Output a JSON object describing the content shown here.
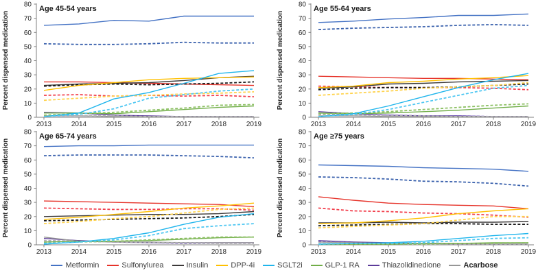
{
  "figure": {
    "ylabel": "Percent dispensed medication",
    "years": [
      2013,
      2014,
      2015,
      2016,
      2017,
      2018,
      2019
    ],
    "ylim": [
      0,
      80
    ],
    "yticks": [
      0,
      10,
      20,
      30,
      40,
      50,
      60,
      70,
      80
    ]
  },
  "legend": [
    {
      "label": "Metformin",
      "color": "#4472C4"
    },
    {
      "label": "Sulfonylurea",
      "color": "#E6332A"
    },
    {
      "label": "Insulin",
      "color": "#3B3838"
    },
    {
      "label": "DPP-4i",
      "color": "#FFC000"
    },
    {
      "label": "SGLT2i",
      "color": "#1FB5EC"
    },
    {
      "label": "GLP-1 RA",
      "color": "#70AD47"
    },
    {
      "label": "Thiazolidinedione",
      "color": "#5C3B99"
    },
    {
      "label": "Acarbose",
      "color": "#969696"
    }
  ],
  "chart_data": [
    {
      "type": "line",
      "title": "Age 45-54 years",
      "x": [
        2013,
        2014,
        2015,
        2016,
        2017,
        2018,
        2019
      ],
      "ylim": [
        0,
        80
      ],
      "series": [
        {
          "name": "Metformin",
          "style": "solid",
          "color": "#4472C4",
          "values": [
            65,
            66,
            68.5,
            68,
            71.5,
            71.5,
            71.5
          ]
        },
        {
          "name": "Metformin",
          "style": "dashed",
          "color": "#3B62AD",
          "values": [
            52,
            51.5,
            51.5,
            52,
            53,
            52.5,
            52.5
          ]
        },
        {
          "name": "Sulfonylurea",
          "style": "solid",
          "color": "#E6332A",
          "values": [
            25,
            25,
            24.5,
            24,
            23.5,
            23,
            22.5
          ]
        },
        {
          "name": "Sulfonylurea",
          "style": "dashed",
          "color": "#F2414E",
          "values": [
            15.5,
            16,
            15,
            15.5,
            15,
            15.5,
            14.5
          ]
        },
        {
          "name": "Insulin",
          "style": "solid",
          "color": "#3B3838",
          "values": [
            22.5,
            23.5,
            24,
            24.5,
            26,
            28,
            29
          ]
        },
        {
          "name": "Insulin",
          "style": "dashed",
          "color": "#181818",
          "values": [
            22,
            23,
            23.5,
            23,
            23.5,
            24,
            25
          ]
        },
        {
          "name": "DPP-4i",
          "style": "solid",
          "color": "#FFC000",
          "values": [
            19,
            22.5,
            24.5,
            26.5,
            27.5,
            28,
            28.5
          ]
        },
        {
          "name": "DPP-4i",
          "style": "dashed",
          "color": "#FFD34D",
          "values": [
            12,
            13.5,
            15,
            15.5,
            16.5,
            17,
            18
          ]
        },
        {
          "name": "Thiazolidinedione",
          "style": "solid",
          "color": "#5C3B99",
          "values": [
            3.5,
            3,
            1.5,
            1,
            0.5,
            0.5,
            0.5
          ]
        },
        {
          "name": "Thiazolidinedione",
          "style": "dashed",
          "color": "#7A5FC0",
          "values": [
            1,
            1,
            1,
            0.5,
            0.5,
            0.5,
            0.5
          ]
        },
        {
          "name": "Acarbose",
          "style": "solid",
          "color": "#969696",
          "values": [
            1,
            1,
            0.5,
            0.5,
            0.5,
            0.5,
            0.5
          ]
        },
        {
          "name": "Acarbose",
          "style": "dashed",
          "color": "#B3B3B3",
          "values": [
            1.5,
            1,
            1,
            0.5,
            0.5,
            0.5,
            0.5
          ]
        },
        {
          "name": "GLP-1 RA",
          "style": "solid",
          "color": "#70AD47",
          "values": [
            3,
            3,
            2.5,
            4,
            5.5,
            7,
            8
          ]
        },
        {
          "name": "GLP-1 RA",
          "style": "dashed",
          "color": "#8CC063",
          "values": [
            1.5,
            2.5,
            3.5,
            5,
            6.5,
            8.5,
            9
          ]
        },
        {
          "name": "SGLT2i",
          "style": "solid",
          "color": "#1FB5EC",
          "values": [
            0.5,
            3,
            13,
            17.5,
            24,
            31,
            33
          ]
        },
        {
          "name": "SGLT2i",
          "style": "dashed",
          "color": "#4FC7F2",
          "values": [
            0.5,
            2,
            6,
            13.5,
            16,
            18.5,
            20
          ]
        }
      ]
    },
    {
      "type": "line",
      "title": "Age 55-64 years",
      "x": [
        2013,
        2014,
        2015,
        2016,
        2017,
        2018,
        2019
      ],
      "ylim": [
        0,
        80
      ],
      "series": [
        {
          "name": "Metformin",
          "style": "solid",
          "color": "#4472C4",
          "values": [
            67,
            68,
            69.5,
            70.5,
            72,
            72,
            73
          ]
        },
        {
          "name": "Metformin",
          "style": "dashed",
          "color": "#3B62AD",
          "values": [
            62,
            63,
            63.5,
            64,
            65,
            65.5,
            65
          ]
        },
        {
          "name": "Sulfonylurea",
          "style": "solid",
          "color": "#E6332A",
          "values": [
            29,
            28.5,
            28,
            27.5,
            27.5,
            27,
            26.5
          ]
        },
        {
          "name": "Sulfonylurea",
          "style": "dashed",
          "color": "#F2414E",
          "values": [
            22,
            21.5,
            21,
            21,
            21,
            20.5,
            19.5
          ]
        },
        {
          "name": "Insulin",
          "style": "solid",
          "color": "#3B3838",
          "values": [
            20.5,
            21.5,
            23.5,
            24,
            25,
            25.5,
            26
          ]
        },
        {
          "name": "Insulin",
          "style": "dashed",
          "color": "#181818",
          "values": [
            19.5,
            20.5,
            21,
            21,
            21.5,
            22.5,
            23.5
          ]
        },
        {
          "name": "DPP-4i",
          "style": "solid",
          "color": "#FFC000",
          "values": [
            21,
            22,
            24.5,
            25.5,
            27,
            28,
            29.5
          ]
        },
        {
          "name": "DPP-4i",
          "style": "dashed",
          "color": "#FFD34D",
          "values": [
            15.5,
            17,
            18.5,
            20.5,
            21.5,
            22.5,
            24.5
          ]
        },
        {
          "name": "Thiazolidinedione",
          "style": "solid",
          "color": "#5C3B99",
          "values": [
            4,
            2.5,
            1.5,
            1,
            1,
            0.5,
            0.5
          ]
        },
        {
          "name": "Thiazolidinedione",
          "style": "dashed",
          "color": "#7A5FC0",
          "values": [
            2.5,
            2,
            1.5,
            1,
            1,
            0.5,
            0.5
          ]
        },
        {
          "name": "Acarbose",
          "style": "solid",
          "color": "#969696",
          "values": [
            1,
            1,
            0.5,
            0.5,
            0.5,
            0.5,
            0.5
          ]
        },
        {
          "name": "Acarbose",
          "style": "dashed",
          "color": "#B3B3B3",
          "values": [
            2,
            1.5,
            1,
            1,
            0.5,
            0.5,
            0.5
          ]
        },
        {
          "name": "GLP-1 RA",
          "style": "solid",
          "color": "#70AD47",
          "values": [
            3,
            2.5,
            3,
            4,
            5,
            6.5,
            8
          ]
        },
        {
          "name": "GLP-1 RA",
          "style": "dashed",
          "color": "#8CC063",
          "values": [
            2.5,
            3,
            4,
            5.5,
            7,
            8.5,
            9.5
          ]
        },
        {
          "name": "SGLT2i",
          "style": "solid",
          "color": "#1FB5EC",
          "values": [
            0.5,
            2.5,
            8,
            14.5,
            21,
            26.5,
            31
          ]
        },
        {
          "name": "SGLT2i",
          "style": "dashed",
          "color": "#4FC7F2",
          "values": [
            0.5,
            2,
            5.5,
            10.5,
            15.5,
            20.5,
            22.5
          ]
        }
      ]
    },
    {
      "type": "line",
      "title": "Age 65-74 years",
      "x": [
        2013,
        2014,
        2015,
        2016,
        2017,
        2018,
        2019
      ],
      "ylim": [
        0,
        80
      ],
      "series": [
        {
          "name": "Metformin",
          "style": "solid",
          "color": "#4472C4",
          "values": [
            69.5,
            70,
            70,
            70.5,
            70.5,
            70.5,
            70.5
          ]
        },
        {
          "name": "Metformin",
          "style": "dashed",
          "color": "#3B62AD",
          "values": [
            63,
            63.5,
            63.5,
            63.5,
            63,
            62.5,
            61.5
          ]
        },
        {
          "name": "Sulfonylurea",
          "style": "solid",
          "color": "#E6332A",
          "values": [
            31,
            30.5,
            30,
            29.5,
            29,
            28.5,
            27
          ]
        },
        {
          "name": "Sulfonylurea",
          "style": "dashed",
          "color": "#F2414E",
          "values": [
            26,
            25.5,
            25,
            25,
            25.5,
            25.5,
            24.5
          ]
        },
        {
          "name": "Insulin",
          "style": "solid",
          "color": "#3B3838",
          "values": [
            20,
            20.5,
            21,
            21.5,
            21.5,
            22,
            23.5
          ]
        },
        {
          "name": "Insulin",
          "style": "dashed",
          "color": "#181818",
          "values": [
            17,
            17.5,
            18,
            18.5,
            19,
            20,
            21.5
          ]
        },
        {
          "name": "DPP-4i",
          "style": "solid",
          "color": "#FFC000",
          "values": [
            18,
            19.5,
            21.5,
            23.5,
            26,
            27.5,
            29.5
          ]
        },
        {
          "name": "DPP-4i",
          "style": "dashed",
          "color": "#FFD34D",
          "values": [
            15,
            16.5,
            18.5,
            20,
            22.5,
            25,
            26
          ]
        },
        {
          "name": "Thiazolidinedione",
          "style": "solid",
          "color": "#5C3B99",
          "values": [
            4.5,
            3,
            2,
            1.5,
            1.5,
            1.5,
            1.5
          ]
        },
        {
          "name": "Thiazolidinedione",
          "style": "dashed",
          "color": "#7A5FC0",
          "values": [
            3,
            2.5,
            2,
            1.5,
            1,
            1,
            1
          ]
        },
        {
          "name": "Acarbose",
          "style": "solid",
          "color": "#969696",
          "values": [
            5.5,
            2.5,
            2,
            2,
            1.5,
            1.5,
            1.5
          ]
        },
        {
          "name": "Acarbose",
          "style": "dashed",
          "color": "#B3B3B3",
          "values": [
            3,
            2.5,
            2,
            1.5,
            1.5,
            1,
            1
          ]
        },
        {
          "name": "GLP-1 RA",
          "style": "solid",
          "color": "#70AD47",
          "values": [
            2,
            2.5,
            2.5,
            3,
            4,
            5,
            5.5
          ]
        },
        {
          "name": "GLP-1 RA",
          "style": "dashed",
          "color": "#8CC063",
          "values": [
            1.5,
            2,
            2.5,
            3.5,
            4.5,
            5.5,
            5.5
          ]
        },
        {
          "name": "SGLT2i",
          "style": "solid",
          "color": "#1FB5EC",
          "values": [
            0.5,
            2,
            4.5,
            8.5,
            14.5,
            19.5,
            22
          ]
        },
        {
          "name": "SGLT2i",
          "style": "dashed",
          "color": "#4FC7F2",
          "values": [
            1,
            2,
            3.5,
            6.5,
            11.5,
            13.5,
            15
          ]
        }
      ]
    },
    {
      "type": "line",
      "title": "Age ≥75 years",
      "x": [
        2013,
        2014,
        2015,
        2016,
        2017,
        2018,
        2019
      ],
      "ylim": [
        0,
        80
      ],
      "series": [
        {
          "name": "Metformin",
          "style": "solid",
          "color": "#4472C4",
          "values": [
            56.5,
            56,
            55.5,
            54.5,
            54,
            53.5,
            52
          ]
        },
        {
          "name": "Metformin",
          "style": "dashed",
          "color": "#3B62AD",
          "values": [
            48,
            47.5,
            46.5,
            45,
            44.5,
            43.5,
            41.5
          ]
        },
        {
          "name": "Sulfonylurea",
          "style": "solid",
          "color": "#E6332A",
          "values": [
            34,
            31.5,
            29.5,
            28.5,
            28,
            27.5,
            25.5
          ]
        },
        {
          "name": "Sulfonylurea",
          "style": "dashed",
          "color": "#F2414E",
          "values": [
            26,
            24,
            23.5,
            22.5,
            22,
            21,
            19.5
          ]
        },
        {
          "name": "Insulin",
          "style": "solid",
          "color": "#3B3838",
          "values": [
            15.5,
            15.5,
            16,
            15.5,
            16,
            16,
            16.5
          ]
        },
        {
          "name": "Insulin",
          "style": "dashed",
          "color": "#181818",
          "values": [
            13.5,
            14,
            14.5,
            15,
            15,
            14.5,
            14.5
          ]
        },
        {
          "name": "DPP-4i",
          "style": "solid",
          "color": "#FFC000",
          "values": [
            15,
            15.5,
            17,
            19,
            22,
            24,
            25.5
          ]
        },
        {
          "name": "DPP-4i",
          "style": "dashed",
          "color": "#FFD34D",
          "values": [
            12,
            13,
            14,
            15,
            17.5,
            20,
            20
          ]
        },
        {
          "name": "Thiazolidinedione",
          "style": "solid",
          "color": "#5C3B99",
          "values": [
            3,
            2,
            1.5,
            1,
            1,
            0.5,
            0.5
          ]
        },
        {
          "name": "Thiazolidinedione",
          "style": "dashed",
          "color": "#7A5FC0",
          "values": [
            2.5,
            1.5,
            1,
            1,
            0.5,
            0.5,
            0.5
          ]
        },
        {
          "name": "Acarbose",
          "style": "solid",
          "color": "#969696",
          "values": [
            2,
            1.5,
            1,
            1,
            0.5,
            0.5,
            0.5
          ]
        },
        {
          "name": "Acarbose",
          "style": "dashed",
          "color": "#B3B3B3",
          "values": [
            1.5,
            1,
            1,
            0.5,
            0.5,
            0.5,
            0.5
          ]
        },
        {
          "name": "GLP-1 RA",
          "style": "solid",
          "color": "#70AD47",
          "values": [
            0.5,
            0.5,
            0.5,
            1,
            1,
            1.5,
            1.5
          ]
        },
        {
          "name": "GLP-1 RA",
          "style": "dashed",
          "color": "#8CC063",
          "values": [
            0.5,
            0.5,
            0.5,
            0.5,
            1,
            1,
            1.5
          ]
        },
        {
          "name": "SGLT2i",
          "style": "solid",
          "color": "#1FB5EC",
          "values": [
            0.5,
            1,
            1.5,
            2.5,
            4.5,
            6.5,
            8
          ]
        },
        {
          "name": "SGLT2i",
          "style": "dashed",
          "color": "#4FC7F2",
          "values": [
            0.5,
            1,
            1,
            1.5,
            3,
            4.5,
            5
          ]
        }
      ]
    }
  ]
}
